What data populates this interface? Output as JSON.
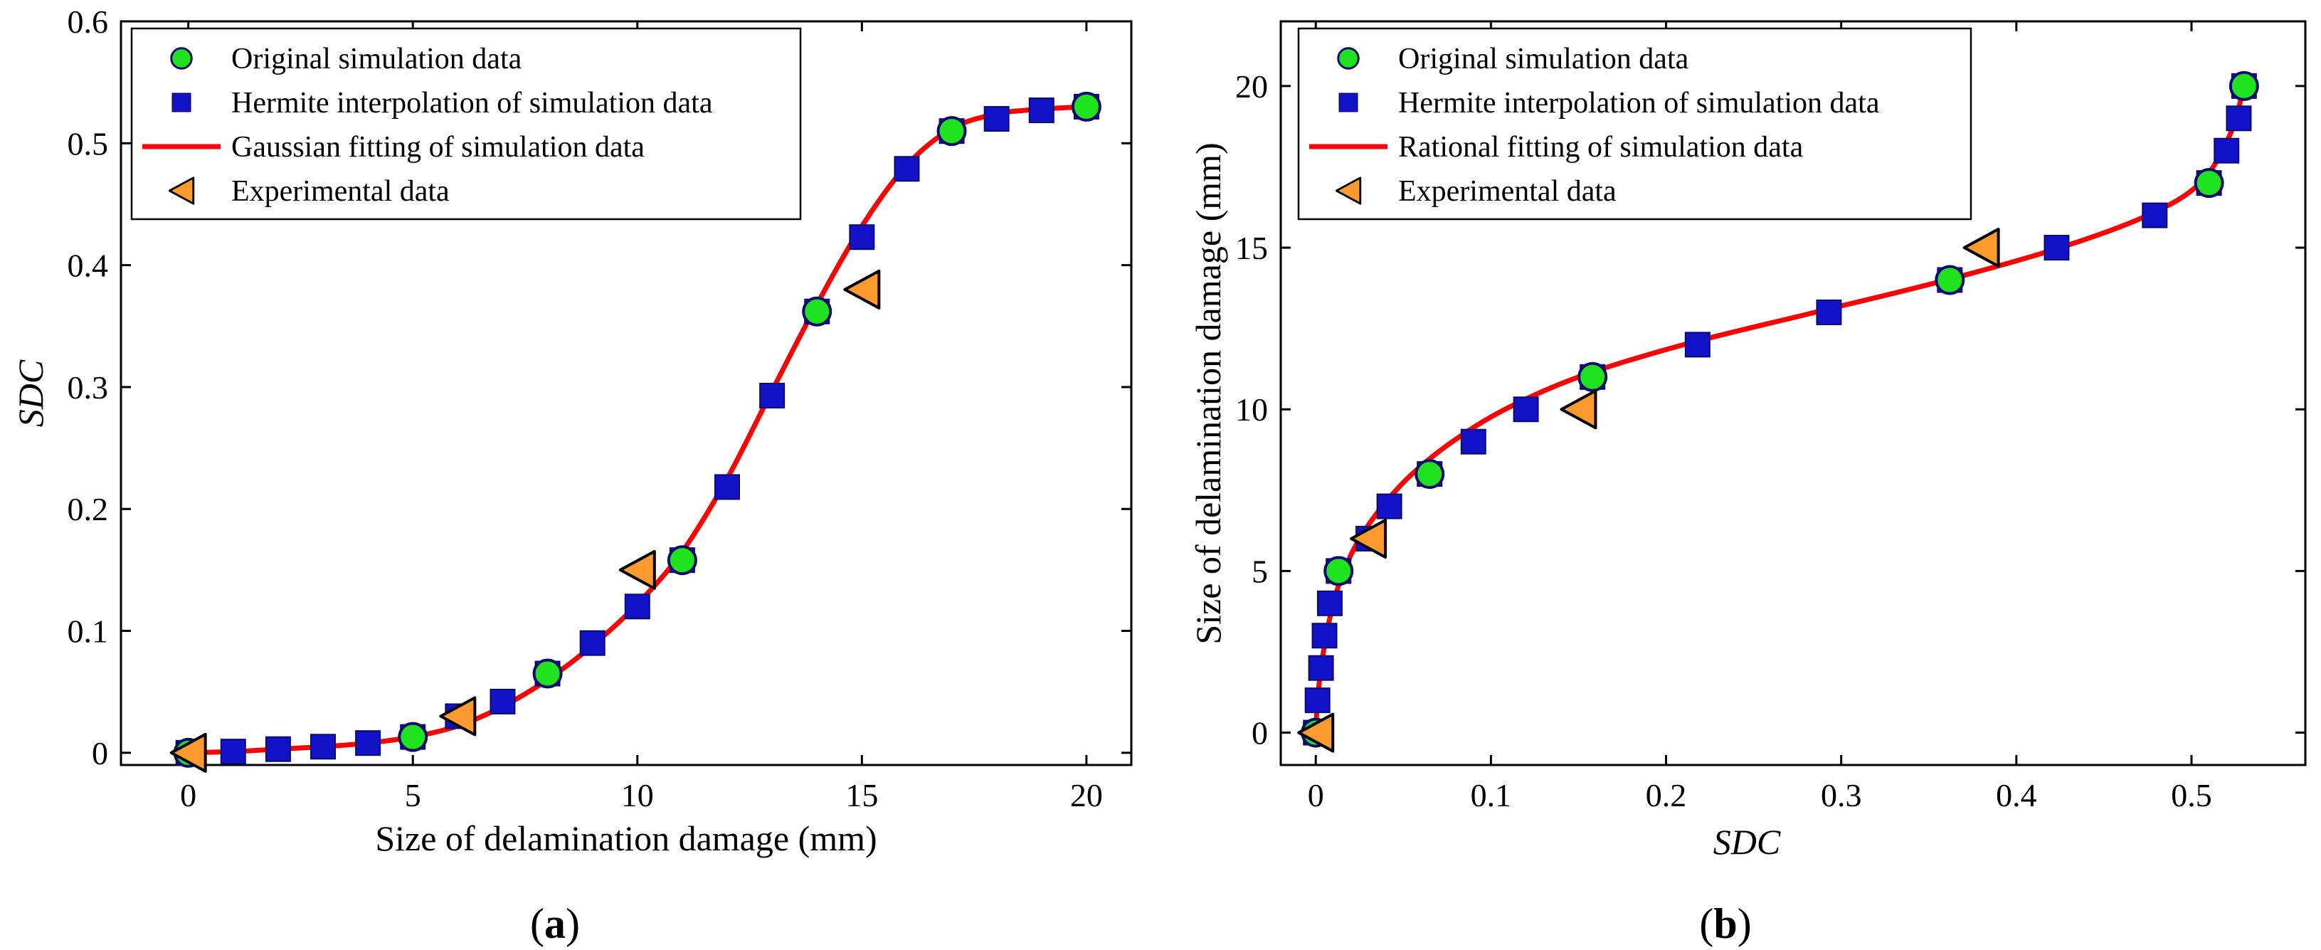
{
  "colors": {
    "fit_line": "#ff0000",
    "sim_marker": "#1fe31f",
    "hermite_marker": "#1212c8",
    "marker_edge": "#0b0b6e",
    "exp_marker": "#ff9a2e",
    "exp_edge": "#000000",
    "axis": "#000000"
  },
  "panel_a": {
    "label": "a"
  },
  "panel_b": {
    "label": "b"
  },
  "chart_data": [
    {
      "id": "a",
      "type": "scatter",
      "xlabel": "Size of delamination damage (mm)",
      "ylabel": "SDC",
      "xlim": [
        -1.5,
        21
      ],
      "ylim": [
        -0.01,
        0.6
      ],
      "xticks": [
        "0",
        "5",
        "10",
        "15",
        "20"
      ],
      "xtick_values": [
        0,
        5,
        10,
        15,
        20
      ],
      "yticks": [
        "0",
        "0.1",
        "0.2",
        "0.3",
        "0.4",
        "0.5",
        "0.6"
      ],
      "ytick_values": [
        0,
        0.1,
        0.2,
        0.3,
        0.4,
        0.5,
        0.6
      ],
      "legend": [
        "Original simulation data",
        "Hermite interpolation of simulation data",
        "Gaussian fitting of simulation data",
        "Experimental data"
      ],
      "series": [
        {
          "name": "Hermite interpolation of simulation data",
          "marker": "square",
          "x": [
            0,
            1,
            2,
            3,
            4,
            5,
            6,
            7,
            8,
            9,
            10,
            11,
            12,
            13,
            14,
            15,
            16,
            17,
            18,
            19,
            20
          ],
          "y": [
            0,
            0.001,
            0.003,
            0.005,
            0.008,
            0.013,
            0.03,
            0.042,
            0.065,
            0.09,
            0.12,
            0.158,
            0.218,
            0.293,
            0.362,
            0.423,
            0.479,
            0.51,
            0.52,
            0.527,
            0.53
          ]
        },
        {
          "name": "Original simulation data",
          "marker": "circle",
          "x": [
            0,
            5,
            8,
            11,
            14,
            17,
            20
          ],
          "y": [
            0,
            0.013,
            0.065,
            0.158,
            0.362,
            0.51,
            0.53
          ]
        },
        {
          "name": "Experimental data",
          "marker": "triangle-left",
          "x": [
            0,
            6,
            10,
            15
          ],
          "y": [
            0,
            0.03,
            0.15,
            0.38
          ]
        },
        {
          "name": "Gaussian fitting of simulation data",
          "marker": "line",
          "x": [
            0,
            1,
            2,
            3,
            4,
            5,
            6,
            7,
            8,
            9,
            10,
            11,
            12,
            13,
            14,
            15,
            16,
            17,
            18,
            19,
            20
          ],
          "y": [
            0,
            0.001,
            0.003,
            0.005,
            0.008,
            0.013,
            0.022,
            0.038,
            0.06,
            0.088,
            0.122,
            0.165,
            0.225,
            0.297,
            0.368,
            0.432,
            0.482,
            0.512,
            0.524,
            0.528,
            0.53
          ]
        }
      ]
    },
    {
      "id": "b",
      "type": "scatter",
      "xlabel": "SDC",
      "ylabel": "Size of delamination damage (mm)",
      "xlim": [
        -0.02,
        0.565
      ],
      "ylim": [
        -1,
        22
      ],
      "xticks": [
        "0",
        "0.1",
        "0.2",
        "0.3",
        "0.4",
        "0.5"
      ],
      "xtick_values": [
        0,
        0.1,
        0.2,
        0.3,
        0.4,
        0.5
      ],
      "yticks": [
        "0",
        "5",
        "10",
        "15",
        "20"
      ],
      "ytick_values": [
        0,
        5,
        10,
        15,
        20
      ],
      "legend": [
        "Original simulation data",
        "Hermite interpolation of simulation data",
        "Rational fitting of simulation data",
        "Experimental data"
      ],
      "series": [
        {
          "name": "Hermite interpolation of simulation data",
          "marker": "square",
          "x": [
            0,
            0.001,
            0.003,
            0.005,
            0.008,
            0.013,
            0.03,
            0.042,
            0.065,
            0.09,
            0.12,
            0.158,
            0.218,
            0.293,
            0.362,
            0.423,
            0.479,
            0.51,
            0.52,
            0.527,
            0.53
          ],
          "y": [
            0,
            1,
            2,
            3,
            4,
            5,
            6,
            7,
            8,
            9,
            10,
            11,
            12,
            13,
            14,
            15,
            16,
            17,
            18,
            19,
            20
          ]
        },
        {
          "name": "Original simulation data",
          "marker": "circle",
          "x": [
            0,
            0.013,
            0.065,
            0.158,
            0.362,
            0.51,
            0.53
          ],
          "y": [
            0,
            5,
            8,
            11,
            14,
            17,
            20
          ]
        },
        {
          "name": "Experimental data",
          "marker": "triangle-left",
          "x": [
            0,
            0.03,
            0.15,
            0.38
          ],
          "y": [
            0,
            6,
            10,
            15
          ]
        },
        {
          "name": "Rational fitting of simulation data",
          "marker": "line",
          "x": [
            0,
            0.001,
            0.003,
            0.006,
            0.01,
            0.016,
            0.025,
            0.038,
            0.055,
            0.078,
            0.108,
            0.15,
            0.21,
            0.285,
            0.36,
            0.425,
            0.475,
            0.505,
            0.522,
            0.53
          ],
          "y": [
            0,
            1,
            2,
            3,
            4,
            5,
            6,
            7,
            8,
            9,
            10,
            11,
            12,
            13,
            14,
            15,
            16,
            17,
            18.5,
            20
          ]
        }
      ]
    }
  ]
}
